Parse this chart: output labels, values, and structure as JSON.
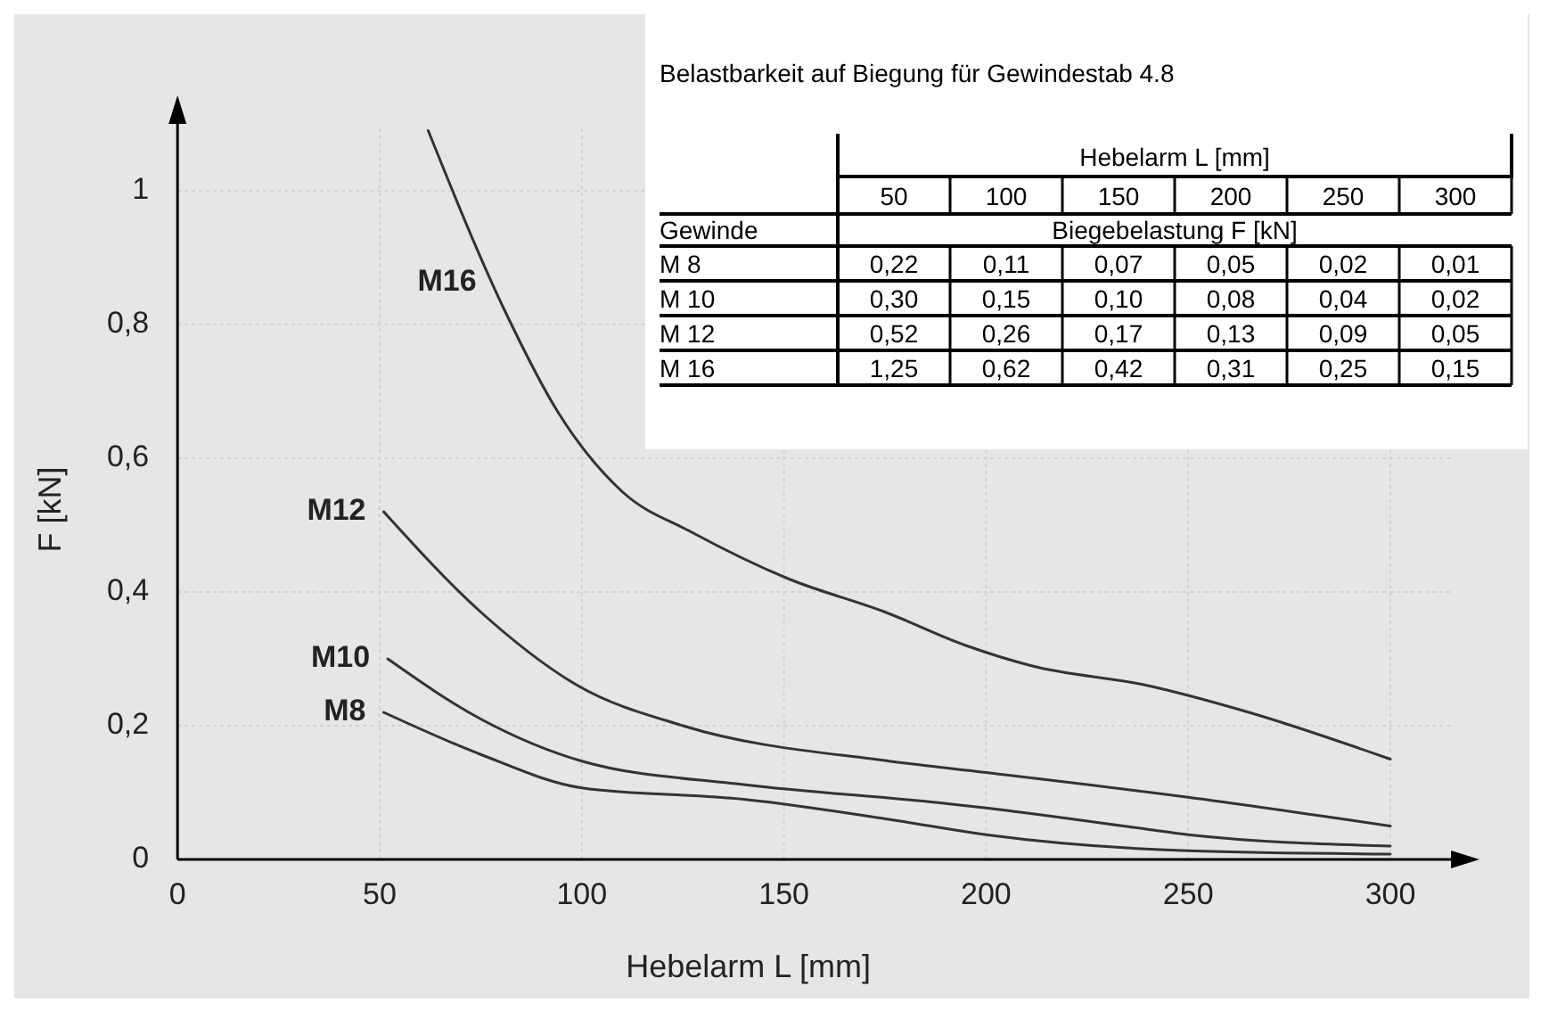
{
  "chart_data": {
    "type": "line",
    "xlabel": "Hebelarm L [mm]",
    "ylabel": "F [kN]",
    "xlim": [
      0,
      315
    ],
    "ylim": [
      0,
      1.1
    ],
    "xticks": [
      0,
      50,
      100,
      150,
      200,
      250,
      300
    ],
    "yticks": [
      0,
      {
        "value": 0.2,
        "label": "0,2"
      },
      {
        "value": 0.4,
        "label": "0,4"
      },
      {
        "value": 0.6,
        "label": "0,6"
      },
      {
        "value": 0.8,
        "label": "0,8"
      },
      1
    ],
    "grid": true,
    "line_style": "solid",
    "series": [
      {
        "name": "M16",
        "color": "#333333",
        "x": [
          62,
          81,
          94,
          110,
          127,
          151,
          175,
          195,
          211,
          240,
          265,
          300
        ],
        "values": [
          1.09,
          0.82,
          0.67,
          0.55,
          0.49,
          0.42,
          0.37,
          0.32,
          0.29,
          0.26,
          0.22,
          0.15
        ]
      },
      {
        "name": "M12",
        "color": "#333333",
        "x": [
          51,
          75,
          99,
          125,
          176,
          200,
          250,
          300
        ],
        "values": [
          0.52,
          0.37,
          0.26,
          0.2,
          0.147,
          0.13,
          0.093,
          0.05
        ]
      },
      {
        "name": "M10",
        "color": "#333333",
        "x": [
          52,
          75,
          100,
          140,
          188,
          200,
          240,
          250,
          300
        ],
        "values": [
          0.3,
          0.21,
          0.147,
          0.112,
          0.085,
          0.077,
          0.045,
          0.037,
          0.02
        ]
      },
      {
        "name": "M8",
        "color": "#333333",
        "x": [
          51,
          75,
          100,
          140,
          176,
          200,
          250,
          300
        ],
        "values": [
          0.22,
          0.157,
          0.107,
          0.09,
          0.06,
          0.037,
          0.013,
          0.008
        ]
      }
    ],
    "annotations": [
      "Belastbarkeit auf Biegung für Gewindestab 4.8",
      "Hebelarm L [mm]",
      "50",
      "100",
      "150",
      "200",
      "250",
      "300",
      "Gewinde",
      "Biegebelastung F [kN]",
      "M 8",
      "0,22",
      "0,11",
      "0,07",
      "0,05",
      "0,02",
      "0,01",
      "M 10",
      "0,30",
      "0,15",
      "0,10",
      "0,08",
      "0,04",
      "0,02",
      "M 12",
      "0,52",
      "0,26",
      "0,17",
      "0,13",
      "0,09",
      "0,05",
      "M 16",
      "1,25",
      "0,62",
      "0,42",
      "0,31",
      "0,25",
      "0,15"
    ]
  }
}
